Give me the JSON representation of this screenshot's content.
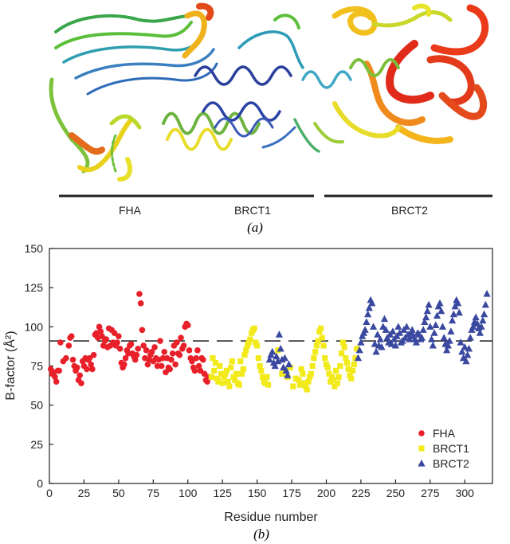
{
  "panel_a": {
    "label": "(a)",
    "domains": [
      {
        "name": "FHA"
      },
      {
        "name": "BRCT1"
      },
      {
        "name": "BRCT2"
      }
    ]
  },
  "panel_b": {
    "label": "(b)"
  },
  "colors": {
    "FHA": "#e8202a",
    "BRCT1": "#f2ea1a",
    "BRCT2": "#3a48a0",
    "axis": "#222222",
    "reference_line": "#333333"
  },
  "chart_data": {
    "type": "scatter",
    "xlabel": "Residue number",
    "ylabel": "B-factor (Å²)",
    "xlim": [
      0,
      320
    ],
    "ylim": [
      0,
      150
    ],
    "xticks": [
      0,
      25,
      50,
      75,
      100,
      125,
      150,
      175,
      200,
      225,
      250,
      275,
      300
    ],
    "yticks": [
      0,
      25,
      50,
      75,
      100,
      125,
      150
    ],
    "reference_line": {
      "y": 91,
      "style": "dashed"
    },
    "legend_position": "bottom-right",
    "series": [
      {
        "name": "FHA",
        "marker": "circle",
        "x": [
          1,
          2,
          3,
          4,
          5,
          6,
          7,
          8,
          10,
          12,
          14,
          15,
          16,
          17,
          18,
          19,
          20,
          21,
          22,
          23,
          24,
          25,
          26,
          27,
          28,
          29,
          30,
          31,
          32,
          33,
          34,
          35,
          36,
          37,
          38,
          39,
          40,
          41,
          42,
          43,
          44,
          45,
          46,
          47,
          48,
          49,
          50,
          51,
          52,
          53,
          54,
          55,
          56,
          57,
          58,
          59,
          60,
          61,
          62,
          63,
          64,
          65,
          66,
          67,
          68,
          69,
          70,
          71,
          72,
          73,
          74,
          75,
          76,
          77,
          78,
          79,
          80,
          81,
          82,
          83,
          84,
          85,
          86,
          87,
          88,
          89,
          90,
          91,
          92,
          93,
          94,
          95,
          96,
          97,
          98,
          99,
          100,
          101,
          102,
          103,
          104,
          105,
          106,
          107,
          108,
          109,
          110,
          111,
          112,
          113,
          114,
          115,
          116
        ],
        "y": [
          73,
          70,
          71,
          68,
          65,
          72,
          72,
          90,
          78,
          80,
          88,
          93,
          94,
          79,
          75,
          72,
          74,
          66,
          69,
          64,
          78,
          75,
          80,
          73,
          79,
          80,
          76,
          73,
          82,
          95,
          96,
          93,
          100,
          97,
          94,
          88,
          91,
          92,
          87,
          99,
          88,
          98,
          90,
          96,
          88,
          90,
          94,
          86,
          77,
          74,
          76,
          80,
          85,
          83,
          88,
          89,
          83,
          81,
          79,
          82,
          86,
          121,
          115,
          98,
          88,
          80,
          85,
          76,
          79,
          82,
          84,
          78,
          87,
          80,
          75,
          79,
          91,
          75,
          80,
          84,
          71,
          80,
          74,
          73,
          79,
          83,
          88,
          76,
          90,
          83,
          82,
          93,
          86,
          88,
          100,
          102,
          101,
          85,
          80,
          78,
          74,
          72,
          80,
          85,
          75,
          72,
          80,
          79,
          70,
          66,
          65,
          68,
          68
        ]
      },
      {
        "name": "BRCT1",
        "marker": "square",
        "x": [
          117,
          118,
          119,
          120,
          121,
          122,
          123,
          124,
          125,
          126,
          127,
          128,
          129,
          130,
          131,
          132,
          133,
          134,
          135,
          136,
          137,
          138,
          139,
          140,
          141,
          142,
          143,
          144,
          145,
          146,
          147,
          148,
          149,
          150,
          151,
          152,
          153,
          154,
          155,
          156,
          157,
          158,
          165,
          168,
          170,
          172,
          174,
          176,
          178,
          180,
          181,
          182,
          183,
          184,
          185,
          186,
          187,
          188,
          189,
          190,
          191,
          192,
          193,
          194,
          195,
          196,
          197,
          198,
          199,
          200,
          201,
          202,
          203,
          204,
          205,
          206,
          207,
          208,
          209,
          210,
          211,
          212,
          213,
          214,
          215,
          216,
          217,
          218,
          219,
          220,
          221,
          222
        ],
        "y": [
          68,
          80,
          72,
          77,
          67,
          65,
          75,
          70,
          64,
          68,
          70,
          72,
          65,
          62,
          74,
          78,
          68,
          66,
          70,
          64,
          63,
          78,
          70,
          73,
          82,
          85,
          88,
          90,
          92,
          96,
          98,
          99,
          90,
          88,
          80,
          75,
          72,
          68,
          65,
          64,
          68,
          63,
          85,
          70,
          72,
          68,
          74,
          62,
          67,
          66,
          63,
          73,
          70,
          64,
          62,
          60,
          65,
          68,
          70,
          75,
          80,
          84,
          88,
          91,
          97,
          99,
          93,
          88,
          80,
          76,
          74,
          70,
          65,
          68,
          66,
          62,
          72,
          64,
          68,
          75,
          83,
          90,
          87,
          80,
          77,
          73,
          69,
          67,
          72,
          76,
          80,
          86
        ]
      },
      {
        "name": "BRCT2",
        "marker": "triangle",
        "x": [
          159,
          160,
          161,
          162,
          163,
          164,
          165,
          166,
          167,
          168,
          169,
          170,
          171,
          172,
          173,
          223,
          224,
          225,
          226,
          227,
          228,
          229,
          230,
          231,
          232,
          233,
          234,
          235,
          236,
          237,
          238,
          239,
          240,
          241,
          242,
          243,
          244,
          245,
          246,
          247,
          248,
          249,
          250,
          251,
          252,
          253,
          254,
          255,
          256,
          257,
          258,
          259,
          260,
          261,
          262,
          263,
          264,
          265,
          266,
          267,
          268,
          269,
          270,
          271,
          272,
          273,
          274,
          275,
          276,
          277,
          278,
          279,
          280,
          281,
          282,
          283,
          284,
          285,
          286,
          287,
          288,
          289,
          290,
          291,
          292,
          293,
          294,
          295,
          296,
          297,
          298,
          299,
          300,
          301,
          302,
          303,
          304,
          305,
          306,
          307,
          308,
          309,
          310,
          311,
          312,
          313,
          314,
          315,
          316
        ],
        "y": [
          79,
          82,
          84,
          77,
          75,
          81,
          78,
          95,
          86,
          79,
          74,
          80,
          72,
          69,
          76,
          80,
          85,
          90,
          94,
          96,
          98,
          103,
          108,
          112,
          117,
          115,
          100,
          89,
          84,
          95,
          88,
          92,
          87,
          100,
          105,
          98,
          93,
          90,
          95,
          89,
          97,
          92,
          88,
          94,
          100,
          96,
          90,
          91,
          98,
          93,
          100,
          95,
          92,
          96,
          98,
          94,
          92,
          90,
          96,
          95,
          92,
          93,
          98,
          103,
          106,
          110,
          114,
          100,
          92,
          88,
          96,
          101,
          107,
          113,
          115,
          110,
          100,
          93,
          89,
          85,
          88,
          91,
          97,
          104,
          108,
          113,
          117,
          115,
          109,
          90,
          84,
          80,
          87,
          78,
          82,
          86,
          93,
          98,
          100,
          103,
          106,
          102,
          99,
          96,
          100,
          104,
          108,
          114,
          121
        ]
      }
    ]
  }
}
